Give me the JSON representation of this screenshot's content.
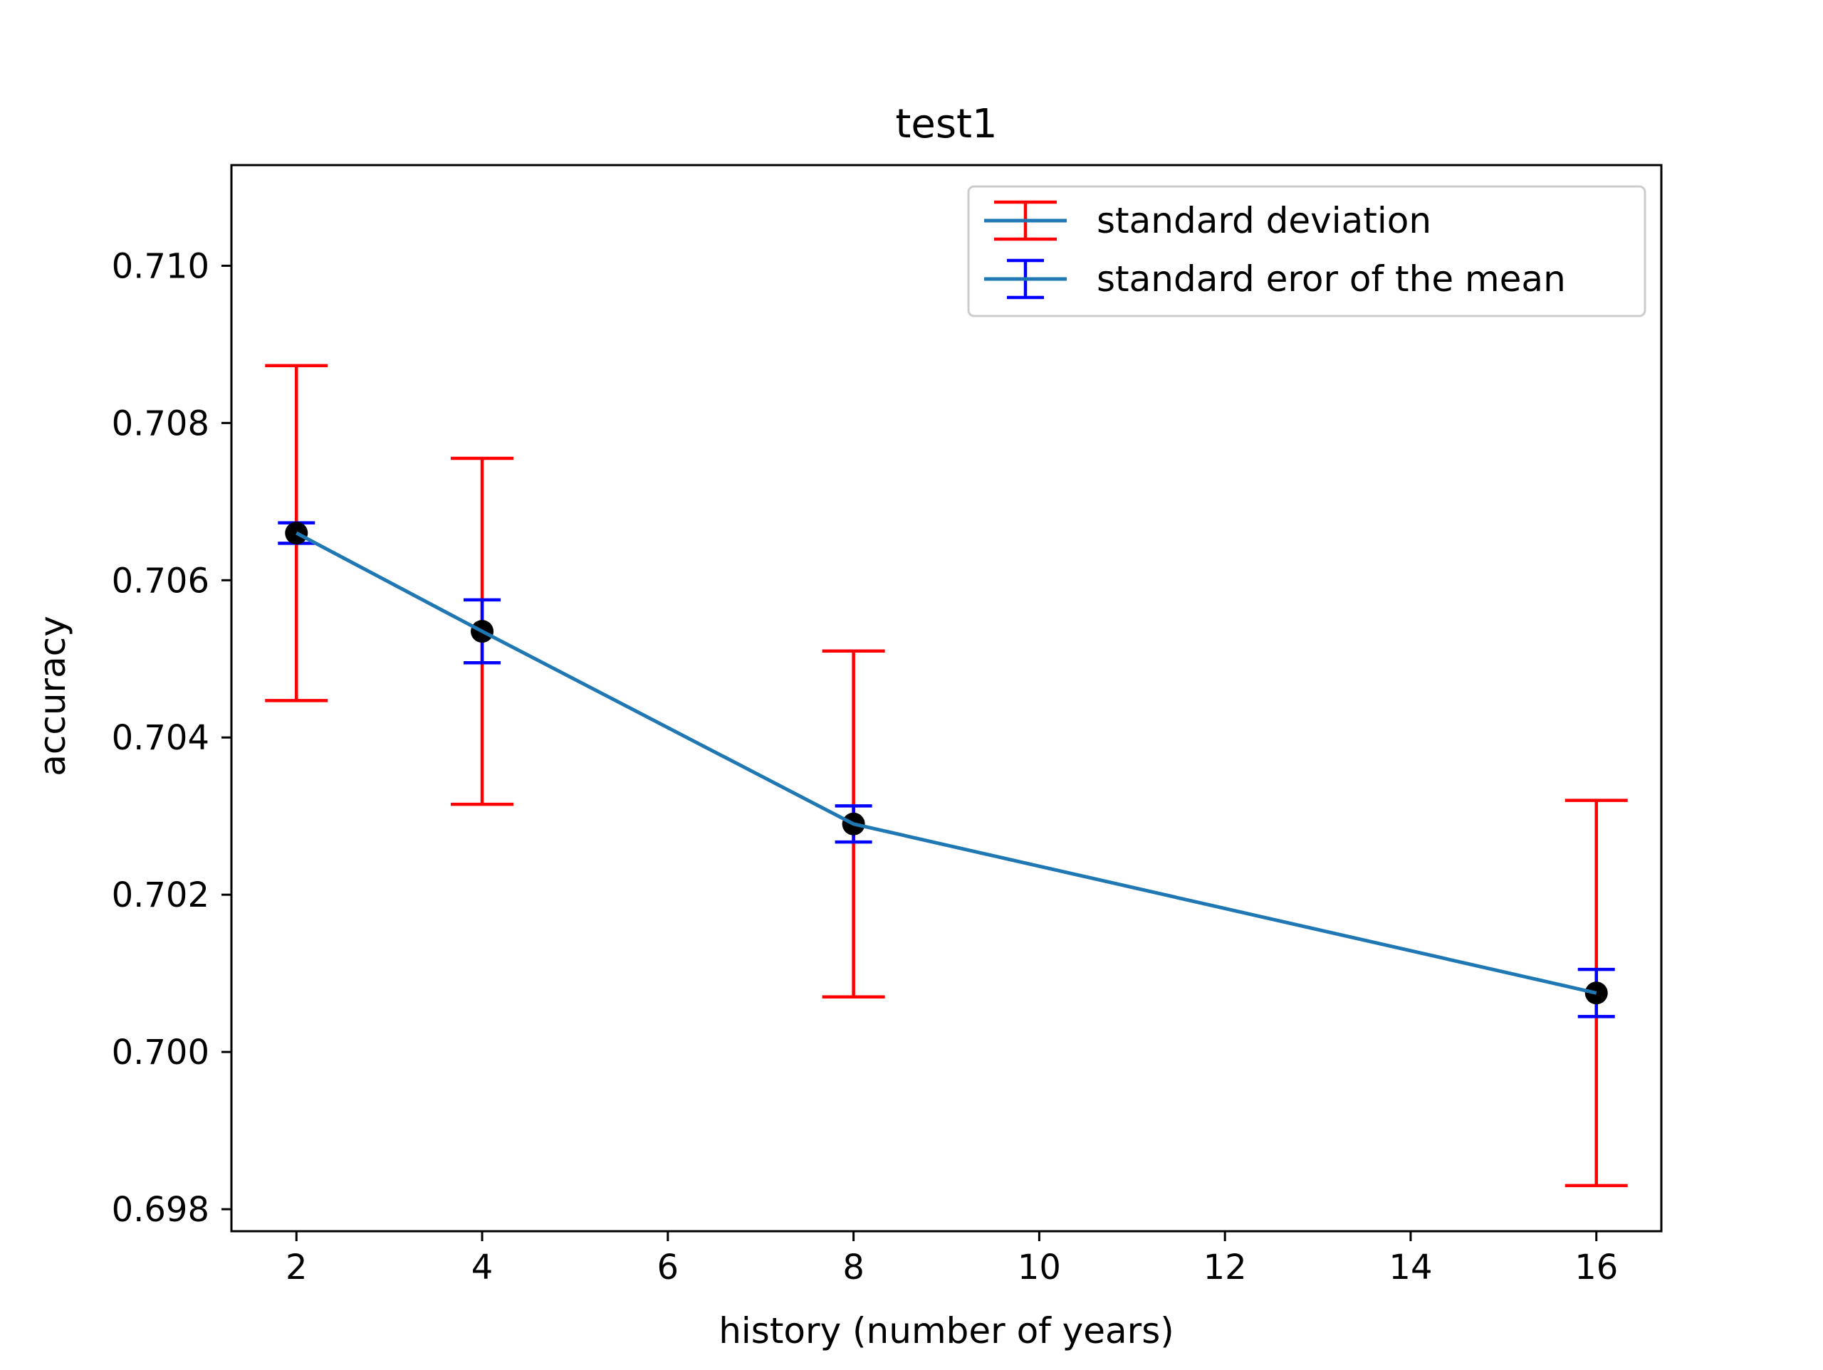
{
  "chart_data": {
    "type": "line",
    "title": "test1",
    "xlabel": "history (number of years)",
    "ylabel": "accuracy",
    "x": [
      2,
      4,
      8,
      16
    ],
    "xlim": [
      1.3,
      16.7
    ],
    "ylim": [
      0.69772,
      0.71128
    ],
    "xticks": [
      2,
      4,
      6,
      8,
      10,
      12,
      14,
      16
    ],
    "xtick_labels": [
      "2",
      "4",
      "6",
      "8",
      "10",
      "12",
      "14",
      "16"
    ],
    "yticks": [
      0.698,
      0.7,
      0.702,
      0.704,
      0.706,
      0.708,
      0.71
    ],
    "ytick_labels": [
      "0.698",
      "0.700",
      "0.702",
      "0.704",
      "0.706",
      "0.708",
      "0.710"
    ],
    "grid": false,
    "legend_position": "top-right",
    "series": [
      {
        "kind": "line",
        "color": "#1f77b4",
        "values": [
          0.7066,
          0.70535,
          0.7029,
          0.70075
        ]
      },
      {
        "kind": "errorbar",
        "name": "standard deviation",
        "color": "#ff0000",
        "y": [
          0.7066,
          0.70535,
          0.7029,
          0.70075
        ],
        "err": [
          0.00213,
          0.0022,
          0.0022,
          0.00245
        ]
      },
      {
        "kind": "errorbar",
        "name": "standard eror of the mean",
        "color": "#0000ff",
        "y": [
          0.7066,
          0.70535,
          0.7029,
          0.70075
        ],
        "err": [
          0.00013,
          0.0004,
          0.00023,
          0.0003
        ]
      },
      {
        "kind": "scatter",
        "color": "#000000",
        "values": [
          0.7066,
          0.70535,
          0.7029,
          0.70075
        ]
      }
    ]
  }
}
